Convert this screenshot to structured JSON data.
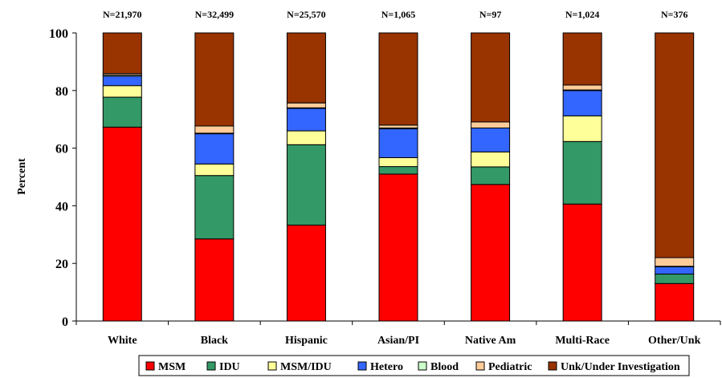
{
  "chart_data": {
    "type": "bar",
    "stacked": true,
    "categories": [
      "White",
      "Black",
      "Hispanic",
      "Asian/PI",
      "Native Am",
      "Multi-Race",
      "Other/Unk"
    ],
    "n_labels": [
      "N=21,970",
      "N=32,499",
      "N=25,570",
      "N=1,065",
      "N=97",
      "N=1,024",
      "N=376"
    ],
    "series": [
      {
        "name": "MSM",
        "color": "#ff0000",
        "values": [
          67.3,
          28.5,
          33.3,
          51.0,
          47.4,
          40.6,
          13.0
        ]
      },
      {
        "name": "IDU",
        "color": "#339966",
        "values": [
          10.4,
          22.0,
          27.9,
          2.6,
          6.1,
          21.7,
          3.3
        ]
      },
      {
        "name": "MSM/IDU",
        "color": "#ffff99",
        "values": [
          4.0,
          4.0,
          4.8,
          3.1,
          5.2,
          8.9,
          0.0
        ]
      },
      {
        "name": "Hetero",
        "color": "#3366ff",
        "values": [
          3.3,
          10.5,
          7.8,
          10.0,
          8.3,
          8.8,
          2.5
        ]
      },
      {
        "name": "Blood",
        "color": "#ccffcc",
        "values": [
          0.4,
          0.2,
          0.2,
          0.3,
          0.0,
          0.2,
          0.2
        ]
      },
      {
        "name": "Pediatric",
        "color": "#ffcc99",
        "values": [
          0.5,
          2.5,
          1.7,
          1.0,
          2.1,
          1.7,
          3.0
        ]
      },
      {
        "name": "Unk/Under Investigation",
        "color": "#993300",
        "values": [
          14.1,
          32.3,
          24.3,
          32.0,
          30.9,
          18.1,
          78.0
        ]
      }
    ],
    "ylabel": "Percent",
    "ylim": [
      0,
      100
    ],
    "yticks": [
      "0",
      "20",
      "40",
      "60",
      "80",
      "100"
    ],
    "grid": false,
    "legend_position": "bottom"
  }
}
